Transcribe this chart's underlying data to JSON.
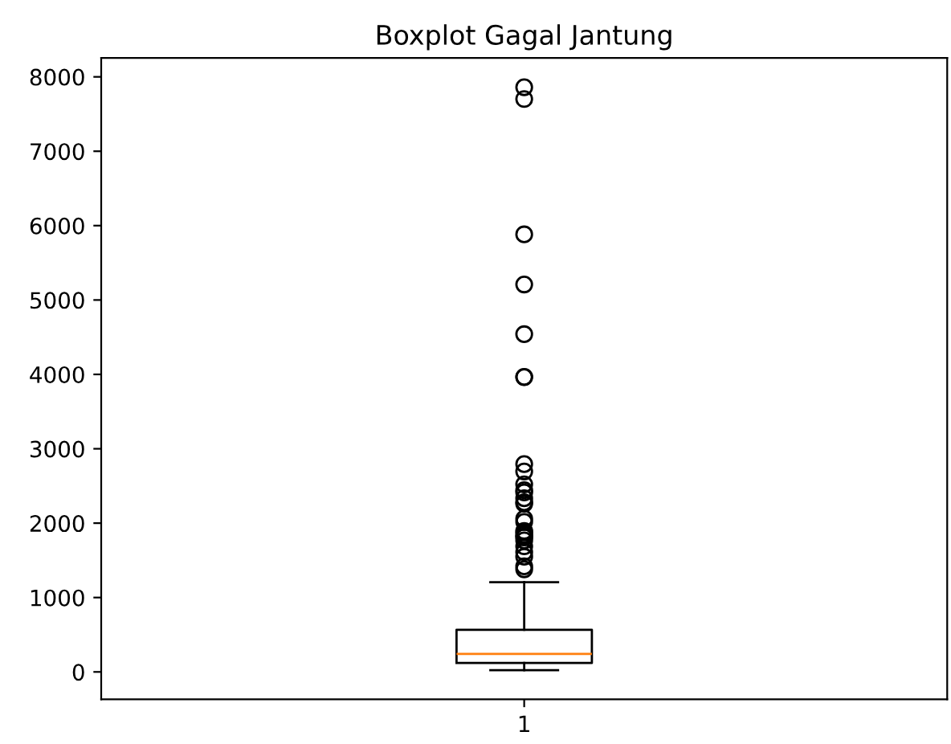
{
  "chart_data": {
    "type": "box",
    "title": "Boxplot Gagal Jantung",
    "categories": [
      "1"
    ],
    "boxes": [
      {
        "low": 23,
        "q1": 120,
        "median": 243,
        "q3": 567,
        "high": 1207,
        "outliers": [
          7861,
          7702,
          5882,
          5209,
          4540,
          3966,
          3964,
          2794,
          2695,
          2522,
          2442,
          2413,
          2334,
          2281,
          2261,
          2060,
          2017,
          1896,
          1876,
          1846,
          1820,
          1808,
          1767,
          1688,
          1610,
          1548,
          1419,
          1380
        ]
      }
    ],
    "ylim": [
      -369,
      8253
    ],
    "yticks": [
      0,
      1000,
      2000,
      3000,
      4000,
      5000,
      6000,
      7000,
      8000
    ],
    "marker": "circle",
    "grid": false
  }
}
